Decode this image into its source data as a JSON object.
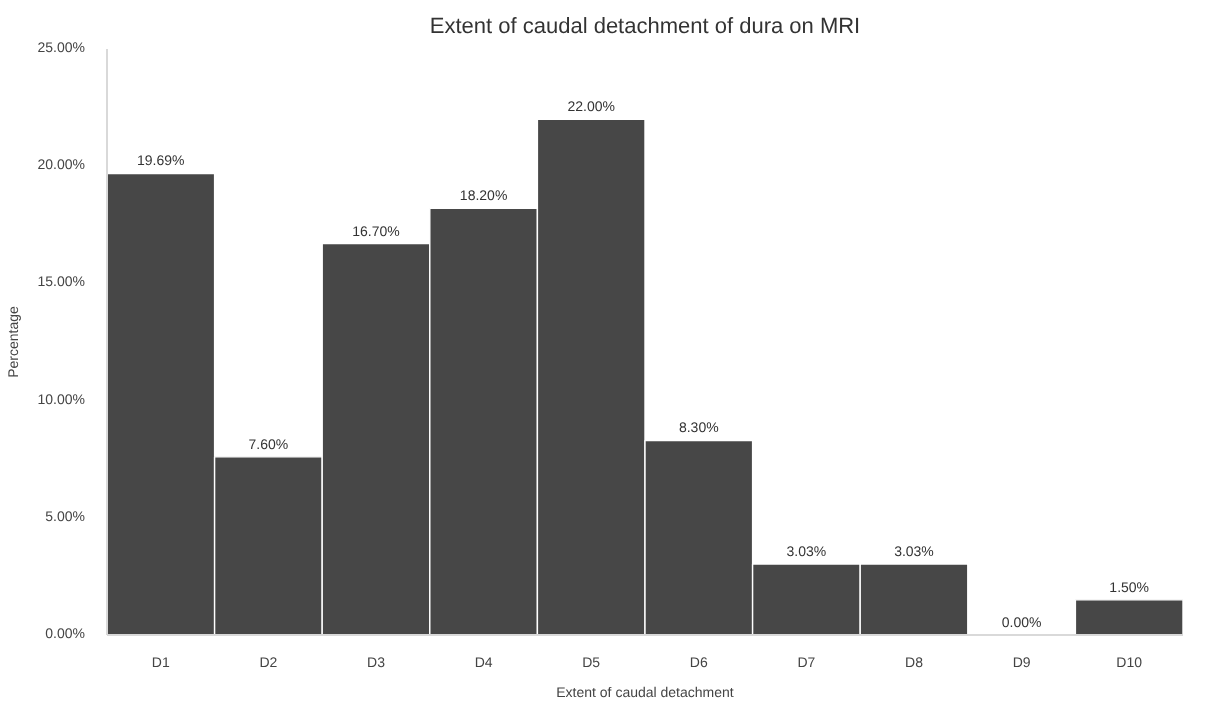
{
  "chart_data": {
    "type": "bar",
    "title": "Extent of caudal detachment of dura on MRI",
    "xlabel": "Extent of caudal detachment",
    "ylabel": "Percentage",
    "categories": [
      "D1",
      "D2",
      "D3",
      "D4",
      "D5",
      "D6",
      "D7",
      "D8",
      "D9",
      "D10"
    ],
    "values": [
      19.69,
      7.6,
      16.7,
      18.2,
      22.0,
      8.3,
      3.03,
      3.03,
      0.0,
      1.5
    ],
    "value_labels": [
      "19.69%",
      "7.60%",
      "16.70%",
      "18.20%",
      "22.00%",
      "8.30%",
      "3.03%",
      "3.03%",
      "0.00%",
      "1.50%"
    ],
    "color": "#474747",
    "ylim": [
      0,
      25
    ],
    "yticks": [
      {
        "value": 0,
        "label": "0.00%"
      },
      {
        "value": 5,
        "label": "5.00%"
      },
      {
        "value": 10,
        "label": "10.00%"
      },
      {
        "value": 15,
        "label": "15.00%"
      },
      {
        "value": 20,
        "label": "20.00%"
      },
      {
        "value": 25,
        "label": "25.00%"
      }
    ],
    "grid": false
  }
}
